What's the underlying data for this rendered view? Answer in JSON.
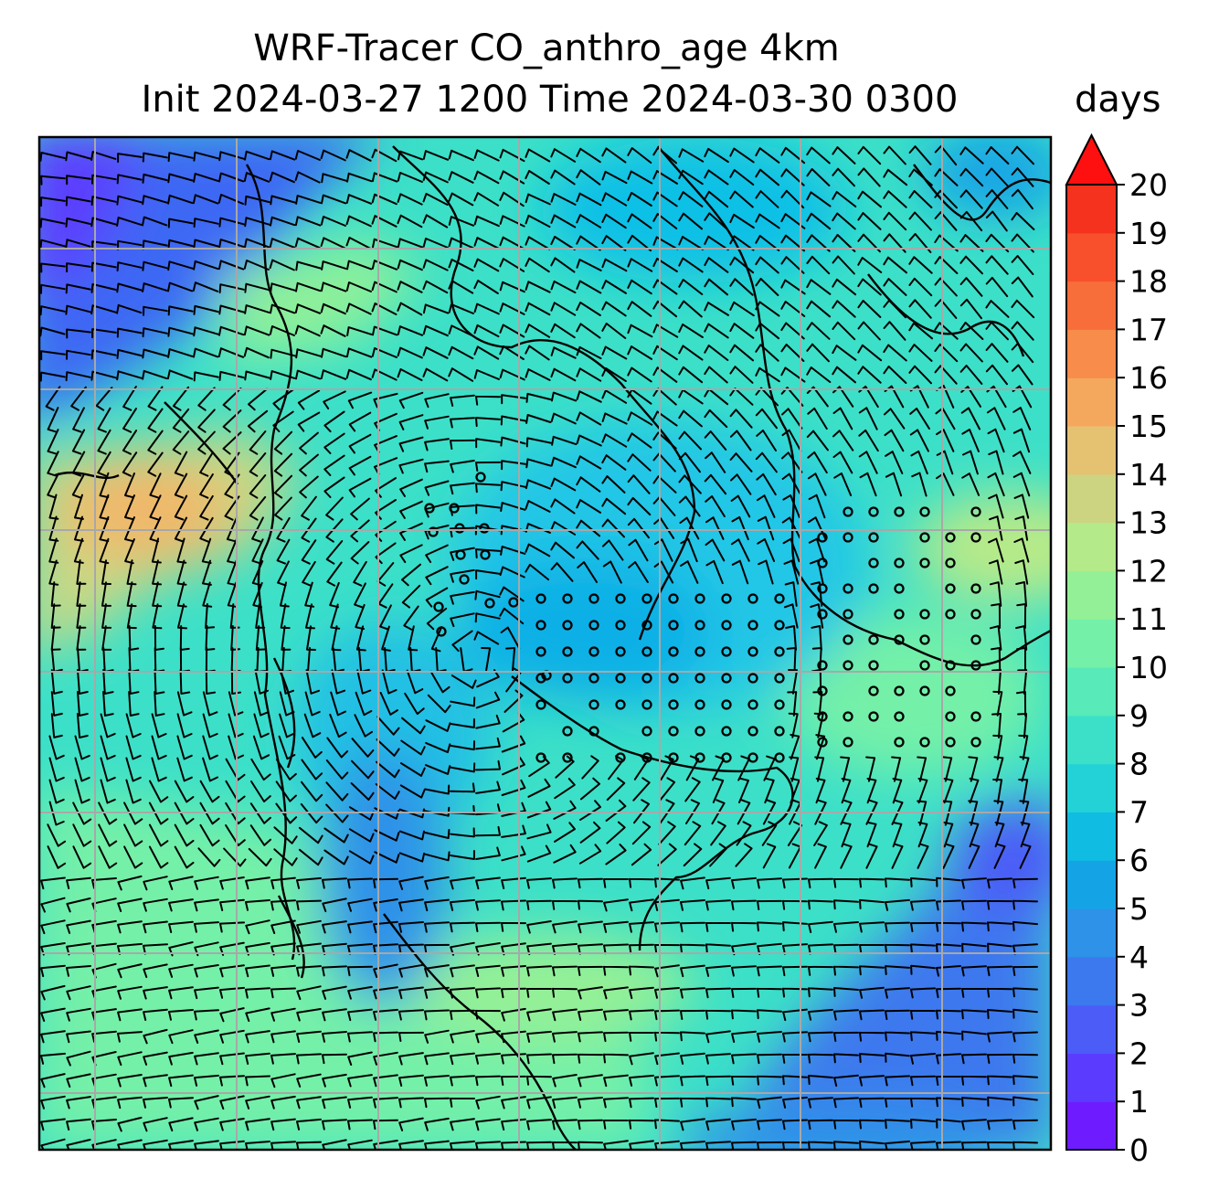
{
  "title": {
    "line1": "WRF-Tracer CO_anthro_age 4km",
    "line2": "Init 2024-03-27 1200 Time 2024-03-30 0300"
  },
  "colorbar": {
    "units": "days",
    "min": 0,
    "max": 20,
    "tick_labels": [
      "0",
      "1",
      "2",
      "3",
      "4",
      "5",
      "6",
      "7",
      "8",
      "9",
      "10",
      "11",
      "12",
      "13",
      "14",
      "15",
      "16",
      "17",
      "18",
      "19",
      "20"
    ],
    "extend": "max",
    "colors": [
      "#6e1cff",
      "#5b3cff",
      "#4b5cf7",
      "#3c78ee",
      "#2d92e8",
      "#14a4e6",
      "#10bce2",
      "#22d2d6",
      "#3ce0c8",
      "#58eab8",
      "#74f0a8",
      "#94f096",
      "#b4ea8a",
      "#ccd482",
      "#e4c272",
      "#f4a85e",
      "#f88c4a",
      "#f86e3a",
      "#f8502c",
      "#f4321e",
      "#ff1010"
    ]
  },
  "map": {
    "field": "CO_anthro_age",
    "gridlines": true,
    "features": [
      "coastlines",
      "wind barbs",
      "calm-wind circles"
    ]
  }
}
